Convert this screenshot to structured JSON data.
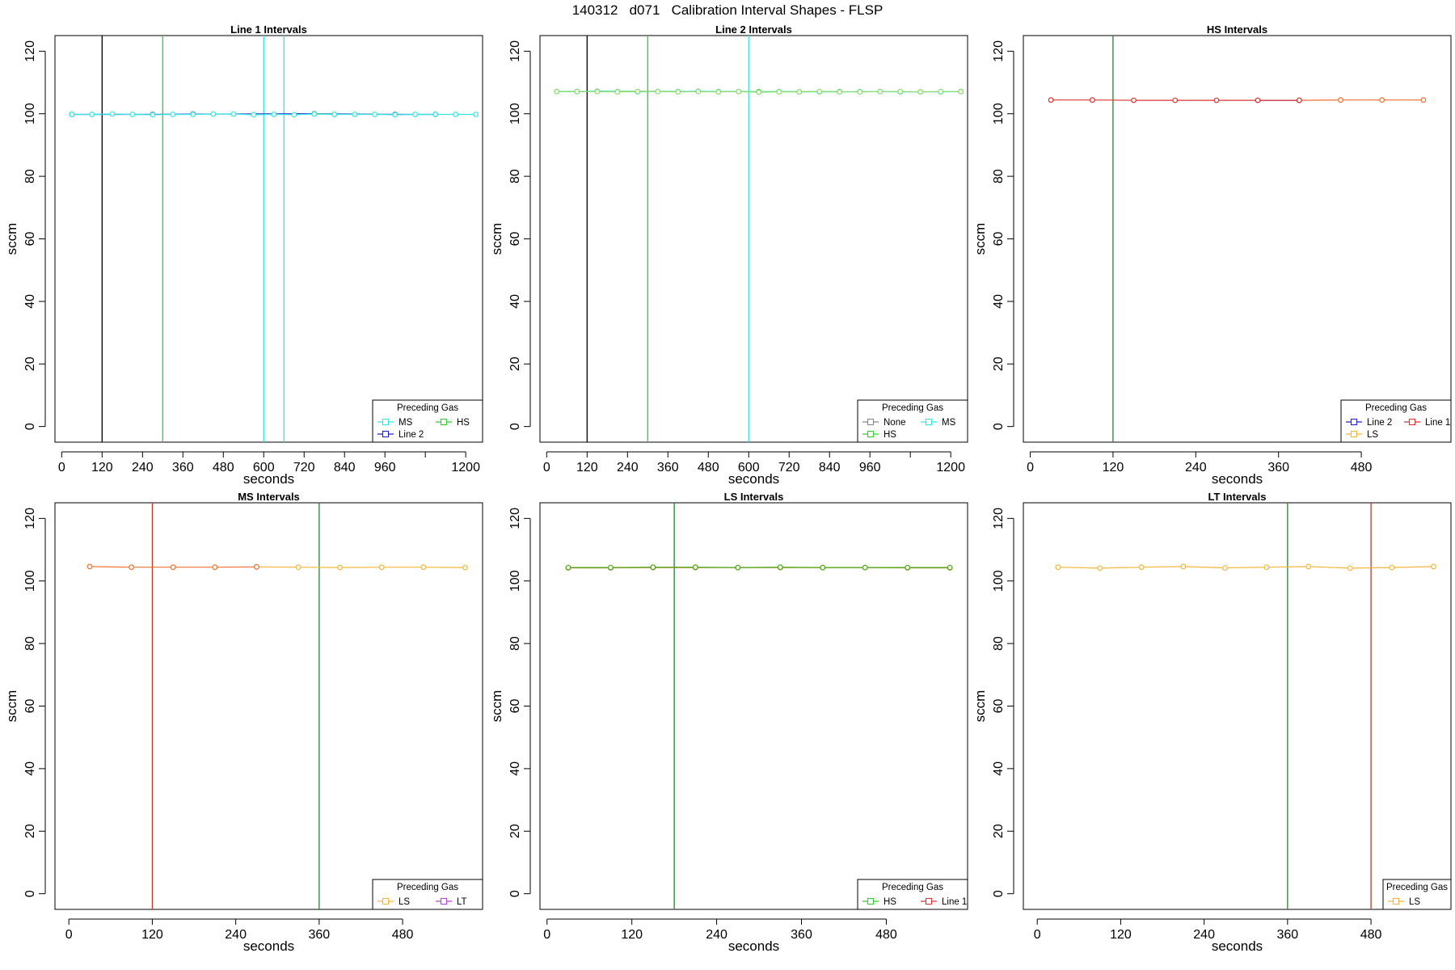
{
  "title": "140312   d071   Calibration Interval Shapes - FLSP",
  "colors": {
    "MS": "#33e6e6",
    "Line 2": "#2222cc",
    "HS": "#33cc33",
    "None": "#888888",
    "Line 1": "#dd3333",
    "LS": "#f5b53b",
    "LT": "#bb44dd"
  },
  "chart_data": [
    {
      "type": "line",
      "title": "Line 1 Intervals",
      "xlabel": "seconds",
      "ylabel": "sccm",
      "xlim": [
        -20,
        1250
      ],
      "ylim": [
        -5,
        125
      ],
      "xticks": [
        0,
        120,
        240,
        360,
        480,
        600,
        720,
        840,
        960,
        1080,
        1200
      ],
      "xtick_labels": [
        "0",
        "120",
        "240",
        "360",
        "480",
        "600",
        "720",
        "840",
        "960",
        "",
        "1200"
      ],
      "yticks": [
        0,
        20,
        40,
        60,
        80,
        100,
        120
      ],
      "vlines": [
        {
          "x": 120,
          "color": "#000000"
        },
        {
          "x": 300,
          "color": "#33cc33"
        },
        {
          "x": 600,
          "color": "#33e6e6"
        },
        {
          "x": 660,
          "color": "#33e6e6"
        }
      ],
      "legend": {
        "title": "Preceding Gas",
        "position": "bottom-right",
        "columns": 2,
        "entries": [
          {
            "name": "MS",
            "color": "#33e6e6"
          },
          {
            "name": "HS",
            "color": "#33cc33"
          },
          {
            "name": "Line 2",
            "color": "#2222cc"
          }
        ]
      },
      "series": [
        {
          "color": "#2222cc",
          "x": [
            30,
            270,
            390,
            750,
            990,
            1110
          ],
          "y": [
            99.8,
            99.8,
            99.9,
            100.0,
            99.8,
            99.8
          ]
        },
        {
          "color": "#33cc33",
          "x": [
            750,
            810
          ],
          "y": [
            100.0,
            99.8
          ]
        },
        {
          "color": "#33e6e6",
          "x": [
            30,
            90,
            150,
            210,
            270,
            330,
            390,
            450,
            510,
            570,
            630,
            690,
            750,
            810,
            870,
            930,
            990,
            1050,
            1110,
            1170,
            1230
          ],
          "y": [
            99.8,
            99.8,
            99.9,
            99.8,
            99.7,
            99.8,
            99.8,
            99.9,
            99.9,
            99.7,
            99.8,
            99.7,
            99.9,
            99.8,
            99.8,
            99.8,
            99.7,
            99.8,
            99.8,
            99.8,
            99.8
          ]
        }
      ]
    },
    {
      "type": "line",
      "title": "Line 2 Intervals",
      "xlabel": "seconds",
      "ylabel": "sccm",
      "xlim": [
        -20,
        1250
      ],
      "ylim": [
        -5,
        125
      ],
      "xticks": [
        0,
        120,
        240,
        360,
        480,
        600,
        720,
        840,
        960,
        1080,
        1200
      ],
      "xtick_labels": [
        "0",
        "120",
        "240",
        "360",
        "480",
        "600",
        "720",
        "840",
        "960",
        "",
        "1200"
      ],
      "yticks": [
        0,
        20,
        40,
        60,
        80,
        100,
        120
      ],
      "vlines": [
        {
          "x": 120,
          "color": "#000000"
        },
        {
          "x": 300,
          "color": "#33cc33"
        },
        {
          "x": 600,
          "color": "#33e6e6"
        }
      ],
      "legend": {
        "title": "Preceding Gas",
        "position": "bottom-right",
        "columns": 2,
        "entries": [
          {
            "name": "None",
            "color": "#888888"
          },
          {
            "name": "MS",
            "color": "#33e6e6"
          },
          {
            "name": "HS",
            "color": "#33cc33"
          }
        ]
      },
      "series": [
        {
          "color": "#33cc33",
          "x": [
            30,
            90,
            150,
            630,
            870
          ],
          "y": [
            107.1,
            107.1,
            107.2,
            107.1,
            107.1
          ]
        },
        {
          "color": "#33e6e6",
          "x": [
            30,
            90,
            150,
            210,
            270,
            330,
            390,
            450,
            510,
            570,
            630,
            690,
            750,
            810,
            870,
            930,
            990,
            1050,
            1110,
            1170,
            1230
          ],
          "y": [
            107.1,
            107.1,
            107.2,
            107.1,
            107.0,
            107.1,
            107.1,
            107.2,
            107.1,
            107.1,
            107.0,
            107.1,
            107.0,
            107.0,
            107.0,
            107.1,
            107.1,
            107.0,
            107.0,
            107.0,
            107.1
          ]
        },
        {
          "color": "#88dd66",
          "x": [
            30,
            90,
            150,
            210,
            270,
            330,
            390,
            450,
            510,
            570,
            630,
            690,
            750,
            810,
            870,
            930,
            990,
            1050,
            1110,
            1170,
            1230
          ],
          "y": [
            107.1,
            107.1,
            107.1,
            107.0,
            107.1,
            107.1,
            107.0,
            107.1,
            107.0,
            107.1,
            106.9,
            107.0,
            107.0,
            107.1,
            107.0,
            107.0,
            107.1,
            107.1,
            107.0,
            107.1,
            107.1
          ]
        }
      ]
    },
    {
      "type": "line",
      "title": "HS Intervals",
      "xlabel": "seconds",
      "ylabel": "sccm",
      "xlim": [
        -10,
        610
      ],
      "ylim": [
        -5,
        125
      ],
      "xticks": [
        0,
        120,
        240,
        360,
        480
      ],
      "xtick_labels": [
        "0",
        "120",
        "240",
        "360",
        "480"
      ],
      "yticks": [
        0,
        20,
        40,
        60,
        80,
        100,
        120
      ],
      "vlines": [
        {
          "x": 120,
          "color": "#2e7d32"
        }
      ],
      "legend": {
        "title": "Preceding Gas",
        "position": "bottom-right",
        "columns": 2,
        "entries": [
          {
            "name": "Line 2",
            "color": "#2222cc"
          },
          {
            "name": "Line 1",
            "color": "#dd3333"
          },
          {
            "name": "LS",
            "color": "#f5b53b"
          }
        ]
      },
      "series": [
        {
          "color": "#f07030",
          "x": [
            390,
            450,
            510,
            570
          ],
          "y": [
            104.3,
            104.4,
            104.4,
            104.4
          ]
        },
        {
          "color": "#2222cc",
          "x": [
            330,
            390
          ],
          "y": [
            104.3,
            104.3
          ]
        },
        {
          "color": "#dd3333",
          "x": [
            30,
            90,
            150,
            210,
            270,
            330,
            390
          ],
          "y": [
            104.4,
            104.4,
            104.3,
            104.3,
            104.3,
            104.3,
            104.3
          ]
        }
      ]
    },
    {
      "type": "line",
      "title": "MS Intervals",
      "xlabel": "seconds",
      "ylabel": "sccm",
      "xlim": [
        -20,
        595
      ],
      "ylim": [
        -5,
        125
      ],
      "xticks": [
        0,
        120,
        240,
        360,
        480
      ],
      "xtick_labels": [
        "0",
        "120",
        "240",
        "360",
        "480"
      ],
      "yticks": [
        0,
        20,
        40,
        60,
        80,
        100,
        120
      ],
      "vlines": [
        {
          "x": 120,
          "color": "#c0392b"
        },
        {
          "x": 360,
          "color": "#2e7d32"
        }
      ],
      "legend": {
        "title": "Preceding Gas",
        "position": "bottom-right",
        "columns": 2,
        "entries": [
          {
            "name": "LS",
            "color": "#f5b53b"
          },
          {
            "name": "LT",
            "color": "#bb44dd"
          }
        ]
      },
      "series": [
        {
          "color": "#f5b53b",
          "x": [
            270,
            330,
            390,
            450,
            510,
            570
          ],
          "y": [
            104.5,
            104.4,
            104.3,
            104.4,
            104.4,
            104.3
          ]
        },
        {
          "color": "#f07030",
          "x": [
            30,
            90,
            150,
            210,
            270
          ],
          "y": [
            104.6,
            104.4,
            104.4,
            104.4,
            104.5
          ]
        }
      ]
    },
    {
      "type": "line",
      "title": "LS Intervals",
      "xlabel": "seconds",
      "ylabel": "sccm",
      "xlim": [
        -10,
        595
      ],
      "ylim": [
        -5,
        125
      ],
      "xticks": [
        0,
        120,
        240,
        360,
        480
      ],
      "xtick_labels": [
        "0",
        "120",
        "240",
        "360",
        "480"
      ],
      "yticks": [
        0,
        20,
        40,
        60,
        80,
        100,
        120
      ],
      "vlines": [
        {
          "x": 180,
          "color": "#2e7d32"
        }
      ],
      "legend": {
        "title": "Preceding Gas",
        "position": "bottom-right",
        "columns": 2,
        "entries": [
          {
            "name": "HS",
            "color": "#33cc33"
          },
          {
            "name": "Line 1",
            "color": "#dd3333"
          }
        ]
      },
      "series": [
        {
          "color": "#cc7722",
          "x": [
            30,
            90,
            150,
            210,
            270,
            330,
            390,
            450,
            510,
            570
          ],
          "y": [
            104.2,
            104.2,
            104.3,
            104.3,
            104.3,
            104.3,
            104.3,
            104.3,
            104.2,
            104.2
          ]
        },
        {
          "color": "#44aa11",
          "x": [
            30,
            90,
            150,
            210,
            270,
            330,
            390,
            450,
            510,
            570
          ],
          "y": [
            104.3,
            104.3,
            104.4,
            104.4,
            104.3,
            104.4,
            104.3,
            104.3,
            104.3,
            104.3
          ]
        }
      ]
    },
    {
      "type": "line",
      "title": "LT Intervals",
      "xlabel": "seconds",
      "ylabel": "sccm",
      "xlim": [
        -20,
        595
      ],
      "ylim": [
        -5,
        125
      ],
      "xticks": [
        0,
        120,
        240,
        360,
        480
      ],
      "xtick_labels": [
        "0",
        "120",
        "240",
        "360",
        "480"
      ],
      "yticks": [
        0,
        20,
        40,
        60,
        80,
        100,
        120
      ],
      "vlines": [
        {
          "x": 360,
          "color": "#2e7d32"
        },
        {
          "x": 480,
          "color": "#c0392b"
        }
      ],
      "legend": {
        "title": "Preceding Gas",
        "position": "bottom-right",
        "columns": 1,
        "entries": [
          {
            "name": "LS",
            "color": "#f5b53b"
          }
        ]
      },
      "series": [
        {
          "color": "#f5b53b",
          "x": [
            30,
            90,
            150,
            210,
            270,
            330,
            390,
            450,
            510,
            570
          ],
          "y": [
            104.4,
            104.1,
            104.4,
            104.6,
            104.2,
            104.4,
            104.6,
            104.1,
            104.3,
            104.6
          ]
        }
      ]
    }
  ]
}
